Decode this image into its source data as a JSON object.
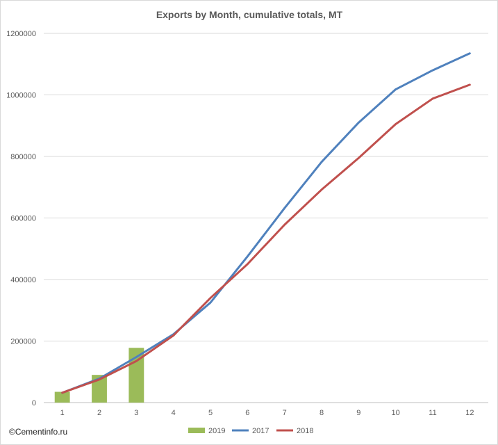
{
  "chart_data": {
    "type": "bar",
    "title": "Exports by Month, cumulative totals, MT",
    "categories": [
      "1",
      "2",
      "3",
      "4",
      "5",
      "6",
      "7",
      "8",
      "9",
      "10",
      "11",
      "12"
    ],
    "ylim": [
      0,
      1200000
    ],
    "y_ticks": [
      "0",
      "200000",
      "400000",
      "600000",
      "800000",
      "1000000",
      "1200000"
    ],
    "grid": true,
    "legend_position": "bottom",
    "series": [
      {
        "name": "2019",
        "type": "bar",
        "color": "#9bbb59",
        "values": [
          35000,
          90000,
          178000,
          null,
          null,
          null,
          null,
          null,
          null,
          null,
          null,
          null
        ]
      },
      {
        "name": "2017",
        "type": "line",
        "color": "#4f81bd",
        "values": [
          32000,
          78000,
          148000,
          222000,
          325000,
          475000,
          632000,
          782000,
          910000,
          1018000,
          1080000,
          1135000
        ]
      },
      {
        "name": "2018",
        "type": "line",
        "color": "#c0504d",
        "values": [
          32000,
          75000,
          135000,
          218000,
          340000,
          450000,
          578000,
          692000,
          795000,
          905000,
          988000,
          1033000
        ]
      }
    ]
  },
  "watermark": "©Cementinfo.ru"
}
